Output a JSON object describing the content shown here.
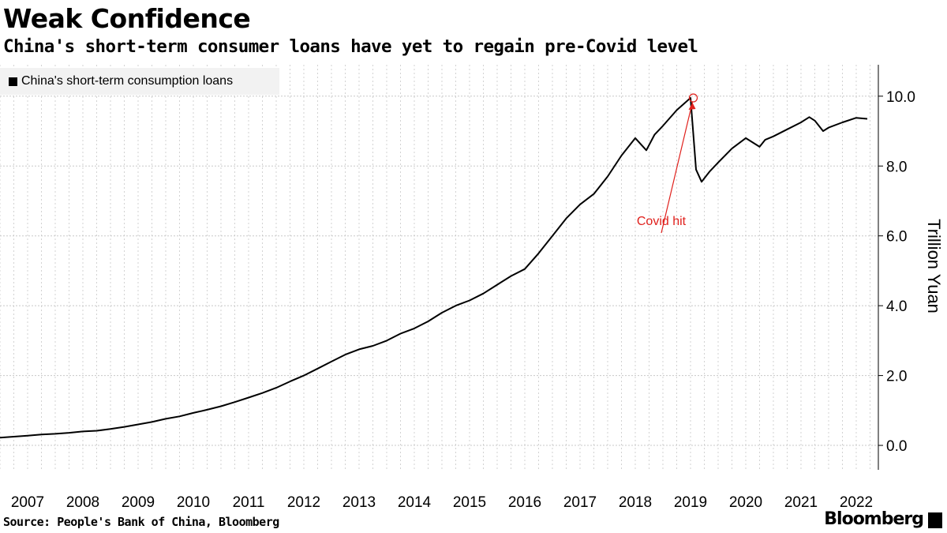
{
  "header": {
    "title": "Weak Confidence",
    "subtitle": "China's short-term consumer loans have yet to regain pre-Covid level"
  },
  "legend": {
    "label": "China's short-term consumption loans"
  },
  "footer": {
    "source": "Source: People's Bank of China, Bloomberg",
    "brand": "Bloomberg"
  },
  "colors": {
    "line": "#000000",
    "annotation": "#e0201c",
    "grid": "#c8c8c8",
    "legend_bg": "#f2f2f2"
  },
  "chart_data": {
    "type": "line",
    "title": "Weak Confidence",
    "subtitle": "China's short-term consumer loans have yet to regain pre-Covid level",
    "xlabel": "",
    "ylabel": "Trillion Yuan",
    "ylim": [
      -0.7,
      10.9
    ],
    "xlim": [
      2007.0,
      2022.9
    ],
    "y_ticks": [
      0.0,
      2.0,
      4.0,
      6.0,
      8.0,
      10.0
    ],
    "y_tick_labels": [
      "0.0",
      "2.0",
      "4.0",
      "6.0",
      "8.0",
      "10.0"
    ],
    "x_tick_labels": [
      "2007",
      "2008",
      "2009",
      "2010",
      "2011",
      "2012",
      "2013",
      "2014",
      "2015",
      "2016",
      "2017",
      "2018",
      "2019",
      "2020",
      "2021",
      "2022"
    ],
    "grid": true,
    "legend_position": "top-left",
    "series": [
      {
        "name": "China's short-term consumption loans",
        "x": [
          2007.0,
          2007.25,
          2007.5,
          2007.75,
          2008.0,
          2008.25,
          2008.5,
          2008.75,
          2009.0,
          2009.25,
          2009.5,
          2009.75,
          2010.0,
          2010.25,
          2010.5,
          2010.75,
          2011.0,
          2011.25,
          2011.5,
          2011.75,
          2012.0,
          2012.25,
          2012.5,
          2012.75,
          2013.0,
          2013.25,
          2013.5,
          2013.75,
          2014.0,
          2014.25,
          2014.5,
          2014.75,
          2015.0,
          2015.25,
          2015.5,
          2015.75,
          2016.0,
          2016.25,
          2016.5,
          2016.75,
          2017.0,
          2017.25,
          2017.5,
          2017.75,
          2018.0,
          2018.25,
          2018.5,
          2018.7,
          2018.85,
          2019.0,
          2019.25,
          2019.5,
          2019.6,
          2019.7,
          2019.85,
          2020.0,
          2020.25,
          2020.5,
          2020.75,
          2020.85,
          2021.0,
          2021.25,
          2021.5,
          2021.65,
          2021.75,
          2021.9,
          2022.0,
          2022.25,
          2022.5,
          2022.7
        ],
        "values": [
          0.22,
          0.25,
          0.28,
          0.31,
          0.33,
          0.36,
          0.4,
          0.42,
          0.47,
          0.53,
          0.6,
          0.67,
          0.76,
          0.83,
          0.93,
          1.02,
          1.12,
          1.24,
          1.37,
          1.5,
          1.65,
          1.83,
          2.0,
          2.2,
          2.4,
          2.6,
          2.75,
          2.85,
          3.0,
          3.2,
          3.35,
          3.55,
          3.8,
          4.0,
          4.15,
          4.35,
          4.6,
          4.85,
          5.05,
          5.5,
          6.0,
          6.5,
          6.9,
          7.2,
          7.7,
          8.3,
          8.8,
          8.45,
          8.9,
          9.15,
          9.6,
          9.95,
          7.9,
          7.55,
          7.85,
          8.1,
          8.5,
          8.8,
          8.55,
          8.75,
          8.85,
          9.05,
          9.25,
          9.4,
          9.3,
          9.0,
          9.1,
          9.25,
          9.38,
          9.35
        ]
      }
    ],
    "annotations": [
      {
        "text": "Covid hit",
        "x": 2019.55,
        "y": 9.95
      }
    ]
  }
}
